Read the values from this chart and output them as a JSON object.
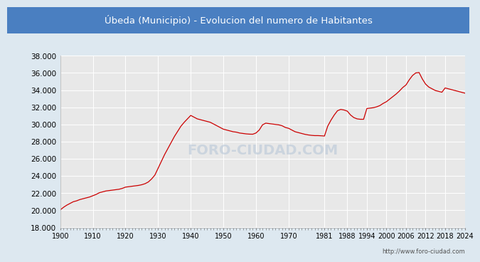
{
  "title": "Úbeda (Municipio) - Evolucion del numero de Habitantes",
  "title_bg_color": "#4a7fc1",
  "title_text_color": "#ffffff",
  "line_color": "#cc0000",
  "outer_bg_color": "#dde8f0",
  "plot_bg_color": "#e8e8e8",
  "grid_color": "#ffffff",
  "footer_text": "http://www.foro-ciudad.com",
  "watermark": "FORO-CIUDAD.COM",
  "ylim": [
    18000,
    38000
  ],
  "ytick_step": 2000,
  "xticks": [
    1900,
    1910,
    1920,
    1930,
    1940,
    1950,
    1960,
    1970,
    1981,
    1988,
    1994,
    2000,
    2006,
    2012,
    2018,
    2024
  ],
  "data": [
    [
      1900,
      20050
    ],
    [
      1901,
      20350
    ],
    [
      1902,
      20600
    ],
    [
      1903,
      20800
    ],
    [
      1904,
      21000
    ],
    [
      1905,
      21100
    ],
    [
      1906,
      21250
    ],
    [
      1907,
      21350
    ],
    [
      1908,
      21450
    ],
    [
      1909,
      21550
    ],
    [
      1910,
      21700
    ],
    [
      1911,
      21850
    ],
    [
      1912,
      22050
    ],
    [
      1913,
      22150
    ],
    [
      1914,
      22250
    ],
    [
      1915,
      22300
    ],
    [
      1916,
      22350
    ],
    [
      1917,
      22400
    ],
    [
      1918,
      22450
    ],
    [
      1919,
      22550
    ],
    [
      1920,
      22700
    ],
    [
      1921,
      22750
    ],
    [
      1922,
      22800
    ],
    [
      1923,
      22850
    ],
    [
      1924,
      22900
    ],
    [
      1925,
      22980
    ],
    [
      1926,
      23100
    ],
    [
      1927,
      23300
    ],
    [
      1928,
      23650
    ],
    [
      1929,
      24100
    ],
    [
      1930,
      24900
    ],
    [
      1931,
      25700
    ],
    [
      1932,
      26500
    ],
    [
      1933,
      27200
    ],
    [
      1934,
      27900
    ],
    [
      1935,
      28600
    ],
    [
      1936,
      29200
    ],
    [
      1937,
      29800
    ],
    [
      1938,
      30250
    ],
    [
      1939,
      30650
    ],
    [
      1940,
      31050
    ],
    [
      1941,
      30850
    ],
    [
      1942,
      30650
    ],
    [
      1943,
      30550
    ],
    [
      1944,
      30450
    ],
    [
      1945,
      30350
    ],
    [
      1946,
      30250
    ],
    [
      1947,
      30050
    ],
    [
      1948,
      29850
    ],
    [
      1949,
      29650
    ],
    [
      1950,
      29450
    ],
    [
      1951,
      29350
    ],
    [
      1952,
      29250
    ],
    [
      1953,
      29150
    ],
    [
      1954,
      29100
    ],
    [
      1955,
      29000
    ],
    [
      1956,
      28950
    ],
    [
      1957,
      28900
    ],
    [
      1958,
      28870
    ],
    [
      1959,
      28860
    ],
    [
      1960,
      29000
    ],
    [
      1961,
      29350
    ],
    [
      1962,
      29950
    ],
    [
      1963,
      30150
    ],
    [
      1964,
      30100
    ],
    [
      1965,
      30050
    ],
    [
      1966,
      30000
    ],
    [
      1967,
      29950
    ],
    [
      1968,
      29850
    ],
    [
      1969,
      29650
    ],
    [
      1970,
      29550
    ],
    [
      1971,
      29350
    ],
    [
      1972,
      29150
    ],
    [
      1973,
      29050
    ],
    [
      1974,
      28950
    ],
    [
      1975,
      28850
    ],
    [
      1976,
      28780
    ],
    [
      1977,
      28730
    ],
    [
      1978,
      28700
    ],
    [
      1979,
      28700
    ],
    [
      1980,
      28680
    ],
    [
      1981,
      28650
    ],
    [
      1982,
      29800
    ],
    [
      1983,
      30500
    ],
    [
      1984,
      31100
    ],
    [
      1985,
      31600
    ],
    [
      1986,
      31750
    ],
    [
      1987,
      31680
    ],
    [
      1988,
      31550
    ],
    [
      1989,
      31100
    ],
    [
      1990,
      30800
    ],
    [
      1991,
      30650
    ],
    [
      1992,
      30600
    ],
    [
      1993,
      30600
    ],
    [
      1994,
      31850
    ],
    [
      1995,
      31900
    ],
    [
      1996,
      31950
    ],
    [
      1997,
      32050
    ],
    [
      1998,
      32200
    ],
    [
      1999,
      32450
    ],
    [
      2000,
      32650
    ],
    [
      2001,
      32950
    ],
    [
      2002,
      33250
    ],
    [
      2003,
      33550
    ],
    [
      2004,
      33900
    ],
    [
      2005,
      34300
    ],
    [
      2006,
      34600
    ],
    [
      2007,
      35200
    ],
    [
      2008,
      35700
    ],
    [
      2009,
      36000
    ],
    [
      2010,
      36050
    ],
    [
      2011,
      35300
    ],
    [
      2012,
      34700
    ],
    [
      2013,
      34350
    ],
    [
      2014,
      34150
    ],
    [
      2015,
      33950
    ],
    [
      2016,
      33850
    ],
    [
      2017,
      33750
    ],
    [
      2018,
      34250
    ],
    [
      2019,
      34150
    ],
    [
      2020,
      34050
    ],
    [
      2021,
      33950
    ],
    [
      2022,
      33850
    ],
    [
      2023,
      33750
    ],
    [
      2024,
      33650
    ]
  ]
}
